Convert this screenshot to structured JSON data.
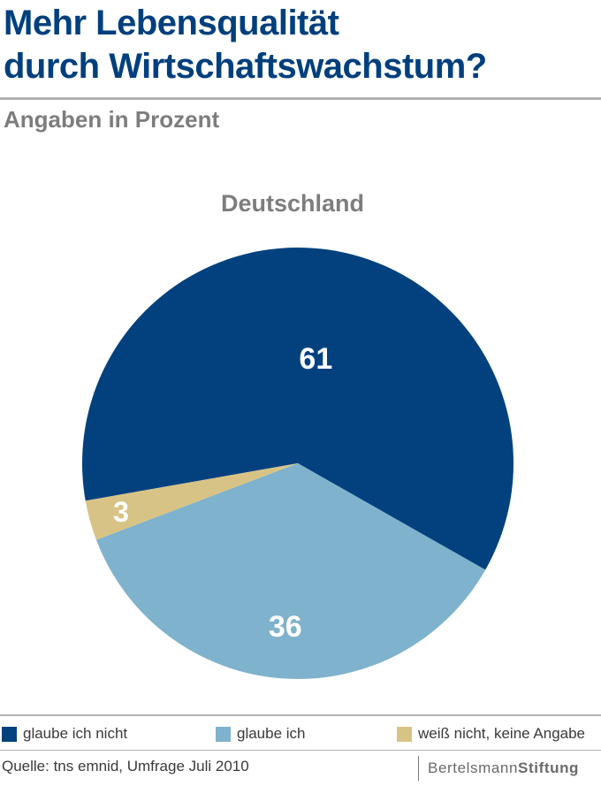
{
  "header": {
    "title_line1": "Mehr Lebensqualität",
    "title_line2": "durch Wirtschaftswachstum?",
    "subtitle": "Angaben in Prozent"
  },
  "chart_data": {
    "type": "pie",
    "title": "Deutschland",
    "unit": "percent",
    "slices": [
      {
        "name": "glaube ich nicht",
        "value": 61,
        "label": "61",
        "color": "#02417e"
      },
      {
        "name": "glaube ich",
        "value": 36,
        "label": "36",
        "color": "#7fb2cc"
      },
      {
        "name": "weiß nicht, keine Angabe",
        "value": 3,
        "label": "3",
        "color": "#d8c386"
      }
    ]
  },
  "legend": {
    "items": [
      {
        "label": "glaube ich nicht",
        "color": "#02417e"
      },
      {
        "label": "glaube ich",
        "color": "#7fb2cc"
      },
      {
        "label": "weiß nicht, keine Angabe",
        "color": "#d8c386"
      }
    ]
  },
  "footer": {
    "source": "Quelle: tns emnid, Umfrage Juli 2010",
    "brand_part1": "Bertelsmann",
    "brand_part2": "Stiftung"
  }
}
